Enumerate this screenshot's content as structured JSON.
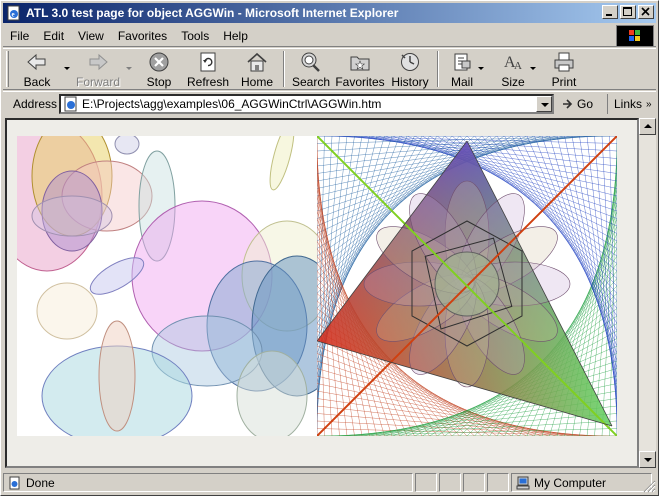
{
  "window": {
    "title": "ATL 3.0 test page for object AGGWin - Microsoft Internet Explorer"
  },
  "menu": [
    {
      "label": "File",
      "key": "F",
      "rest": "ile"
    },
    {
      "label": "Edit",
      "key": "E",
      "rest": "dit"
    },
    {
      "label": "View",
      "key": "V",
      "rest": "iew"
    },
    {
      "label": "Favorites",
      "key": "a",
      "pre": "F",
      "rest": "vorites"
    },
    {
      "label": "Tools",
      "key": "T",
      "rest": "ools"
    },
    {
      "label": "Help",
      "key": "H",
      "rest": "elp"
    }
  ],
  "toolbar": {
    "back": "Back",
    "forward": "Forward",
    "stop": "Stop",
    "refresh": "Refresh",
    "home": "Home",
    "search": "Search",
    "favorites": "Favorites",
    "history": "History",
    "mail": "Mail",
    "size": "Size",
    "print": "Print"
  },
  "address": {
    "label": "Address",
    "url": "E:\\Projects\\agg\\examples\\06_AGGWinCtrl\\AGGWin.htm",
    "go": "Go",
    "links": "Links"
  },
  "status": {
    "text": "Done",
    "zone": "My Computer"
  },
  "colors": {
    "titlebar_start": "#0a246a",
    "titlebar_end": "#a6caf0",
    "chrome": "#d4d0c8"
  },
  "icons": {
    "app": "ie-page-icon",
    "back": "back-arrow-icon",
    "forward": "forward-arrow-icon",
    "stop": "stop-icon",
    "refresh": "refresh-icon",
    "home": "home-icon",
    "search": "search-globe-icon",
    "favorites": "favorites-folder-icon",
    "history": "history-icon",
    "mail": "mail-icon",
    "size": "font-size-icon",
    "print": "printer-icon"
  }
}
